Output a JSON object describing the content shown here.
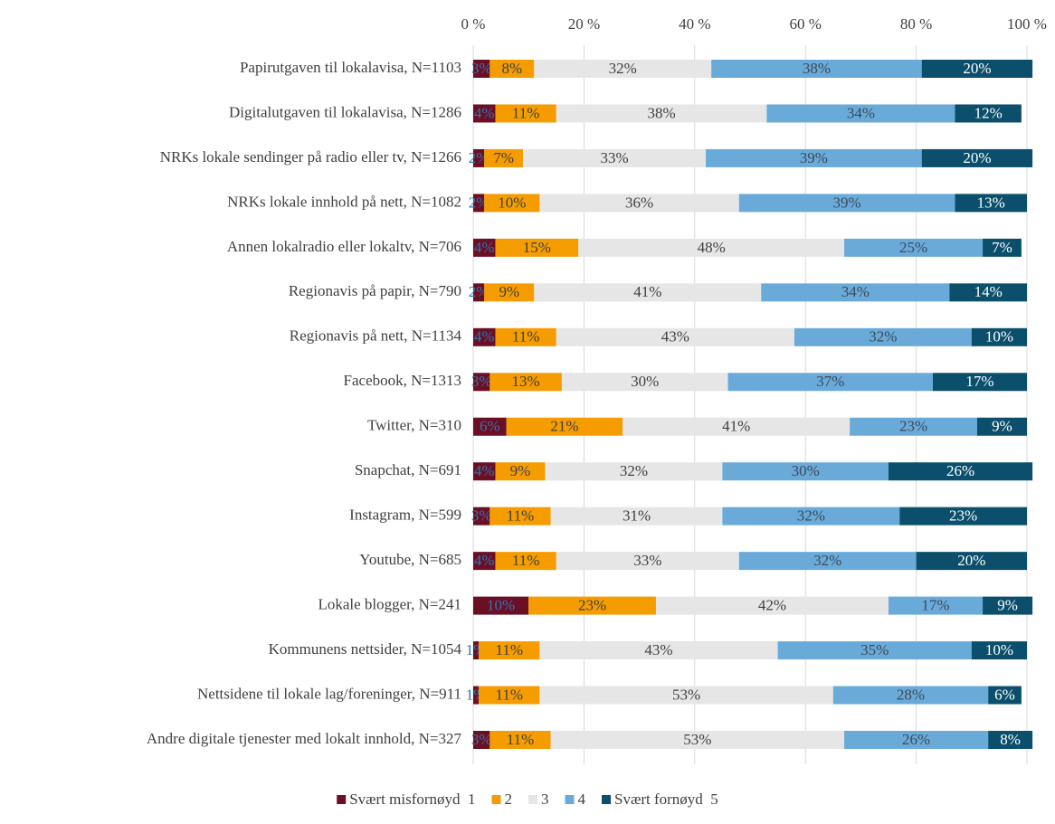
{
  "chart_data": {
    "type": "stacked_barh",
    "categories": [
      "Papirutgaven til lokalavisa, N=1103",
      "Digitalutgaven til lokalavisa, N=1286",
      "NRKs lokale sendinger på radio eller tv, N=1266",
      "NRKs lokale innhold på nett, N=1082",
      "Annen lokalradio eller lokaltv, N=706",
      "Regionavis på papir, N=790",
      "Regionavis på nett, N=1134",
      "Facebook, N=1313",
      "Twitter, N=310",
      "Snapchat, N=691",
      "Instagram, N=599",
      "Youtube, N=685",
      "Lokale blogger, N=241",
      "Kommunens nettsider, N=1054",
      "Nettsidene til lokale lag/foreninger, N=911",
      "Andre digitale tjenester med lokalt innhold, N=327"
    ],
    "series": [
      {
        "name": "Svært misfornøyd  1",
        "color": "#6b0f24",
        "label_color": "#2e75b6",
        "values": [
          3,
          4,
          2,
          2,
          4,
          2,
          4,
          3,
          6,
          4,
          3,
          4,
          10,
          1,
          1,
          3
        ],
        "value_labels": [
          "3%",
          "4%",
          "2%",
          "2%",
          "4%",
          "2%",
          "4%",
          "3%",
          "6%",
          "4%",
          "3%",
          "4%",
          "10%",
          "1%",
          "1%",
          "3%"
        ]
      },
      {
        "name": "2",
        "color": "#f59c00",
        "label_color": "#404040",
        "values": [
          8,
          11,
          7,
          10,
          15,
          9,
          11,
          13,
          21,
          9,
          11,
          11,
          23,
          11,
          11,
          11
        ],
        "value_labels": [
          "8%",
          "11%",
          "7%",
          "10%",
          "15%",
          "9%",
          "11%",
          "13%",
          "21%",
          "9%",
          "11%",
          "11%",
          "23%",
          "11%",
          "11%",
          "11%"
        ]
      },
      {
        "name": "3",
        "color": "#e6e6e6",
        "label_color": "#404040",
        "values": [
          32,
          38,
          33,
          36,
          48,
          41,
          43,
          30,
          41,
          32,
          31,
          33,
          42,
          43,
          53,
          53
        ],
        "value_labels": [
          "32%",
          "38%",
          "33%",
          "36%",
          "48%",
          "41%",
          "43%",
          "30%",
          "41%",
          "32%",
          "31%",
          "33%",
          "42%",
          "43%",
          "53%",
          "53%"
        ]
      },
      {
        "name": "4",
        "color": "#6aaad9",
        "label_color": "#3a4a5a",
        "values": [
          38,
          34,
          39,
          39,
          25,
          34,
          32,
          37,
          23,
          30,
          32,
          32,
          17,
          35,
          28,
          26
        ],
        "value_labels": [
          "38%",
          "34%",
          "39%",
          "39%",
          "25%",
          "34%",
          "32%",
          "37%",
          "23%",
          "30%",
          "32%",
          "32%",
          "17%",
          "35%",
          "28%",
          "26%"
        ]
      },
      {
        "name": "Svært fornøyd  5",
        "color": "#0b4f6c",
        "label_color": "#ffffff",
        "values": [
          20,
          12,
          20,
          13,
          7,
          14,
          10,
          17,
          9,
          26,
          23,
          20,
          9,
          10,
          6,
          8
        ],
        "value_labels": [
          "20%",
          "12%",
          "20%",
          "13%",
          "7%",
          "14%",
          "10%",
          "17%",
          "9%",
          "26%",
          "23%",
          "20%",
          "9%",
          "10%",
          "6%",
          "8%"
        ]
      }
    ],
    "xlim": [
      0,
      100
    ],
    "xticks": [
      {
        "value": 0,
        "label": "0 %"
      },
      {
        "value": 20,
        "label": "20 %"
      },
      {
        "value": 40,
        "label": "40 %"
      },
      {
        "value": 60,
        "label": "60 %"
      },
      {
        "value": 80,
        "label": "80 %"
      },
      {
        "value": 100,
        "label": "100 %"
      }
    ],
    "grid": true,
    "legend": "bottom"
  }
}
